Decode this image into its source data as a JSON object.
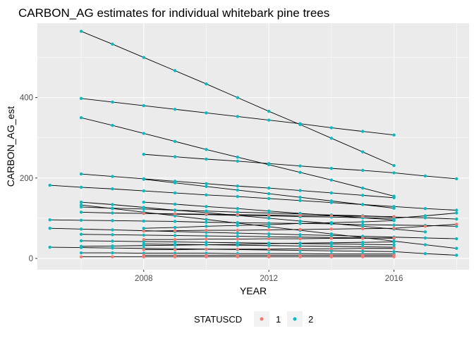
{
  "chart_data": {
    "type": "scatter",
    "title": "CARBON_AG estimates for individual whitebark pine trees",
    "xlabel": "YEAR",
    "ylabel": "CARBON_AG_est",
    "xlim": [
      2004.6,
      2018.4
    ],
    "ylim": [
      -28,
      585
    ],
    "x_ticks": [
      2008,
      2012,
      2016
    ],
    "y_ticks": [
      0,
      200,
      400
    ],
    "x_tick_labels": [
      "2008",
      "2012",
      "2016"
    ],
    "y_tick_labels": [
      "0",
      "200",
      "400"
    ],
    "grid": true,
    "legend": {
      "title": "STATUSCD",
      "position": "bottom",
      "entries": [
        {
          "label": "1",
          "color": "#F8766D"
        },
        {
          "label": "2",
          "color": "#00BFC4"
        }
      ]
    },
    "line_color": "#000000",
    "trees": [
      {
        "status": 2,
        "x": [
          2006,
          2007,
          2008,
          2009,
          2010,
          2011,
          2012,
          2013,
          2014,
          2015,
          2016
        ],
        "y": [
          565,
          533,
          500,
          467,
          434,
          400,
          366,
          333,
          299,
          265,
          231
        ]
      },
      {
        "status": 2,
        "x": [
          2006,
          2007,
          2008,
          2009,
          2010,
          2011,
          2012,
          2013,
          2014,
          2015,
          2016
        ],
        "y": [
          398,
          389,
          380,
          371,
          362,
          353,
          344,
          335,
          325,
          316,
          307
        ]
      },
      {
        "status": 2,
        "x": [
          2006,
          2007,
          2008,
          2009,
          2010,
          2011,
          2012,
          2013,
          2014,
          2015,
          2016
        ],
        "y": [
          350,
          331,
          311,
          291,
          271,
          252,
          233,
          214,
          195,
          175,
          155
        ]
      },
      {
        "status": 2,
        "x": [
          2008,
          2009,
          2010,
          2011,
          2012,
          2013,
          2014,
          2015,
          2016,
          2017,
          2018
        ],
        "y": [
          259,
          253,
          247,
          242,
          236,
          230,
          224,
          219,
          213,
          205,
          198
        ]
      },
      {
        "status": 2,
        "x": [
          2006,
          2007,
          2008,
          2009,
          2010,
          2011,
          2012,
          2013,
          2014,
          2015,
          2016
        ],
        "y": [
          210,
          204,
          198,
          192,
          186,
          180,
          175,
          169,
          163,
          157,
          151
        ]
      },
      {
        "status": 2,
        "x": [
          2005,
          2006,
          2007,
          2008,
          2009,
          2010,
          2011,
          2012,
          2013,
          2014,
          2015,
          2016,
          2017,
          2018
        ],
        "y": [
          182,
          177,
          173,
          168,
          163,
          158,
          154,
          149,
          144,
          139,
          134,
          129,
          124,
          120
        ]
      },
      {
        "status": 2,
        "x": [
          2008,
          2009,
          2010,
          2011,
          2012,
          2013,
          2014,
          2015,
          2016
        ],
        "y": [
          197,
          188,
          179,
          170,
          161,
          152,
          143,
          134,
          125
        ]
      },
      {
        "status": 2,
        "x": [
          2006,
          2007,
          2008,
          2009,
          2010,
          2011,
          2012,
          2013,
          2014,
          2015,
          2016,
          2017
        ],
        "y": [
          140,
          134,
          127,
          120,
          114,
          107,
          100,
          93,
          87,
          80,
          73,
          66
        ]
      },
      {
        "status": 2,
        "x": [
          2006,
          2007,
          2008,
          2009,
          2010,
          2011,
          2012,
          2013,
          2014,
          2015,
          2016,
          2017,
          2018
        ],
        "y": [
          133,
          124,
          115,
          106,
          97,
          88,
          79,
          70,
          61,
          52,
          43,
          34,
          25
        ]
      },
      {
        "status": 2,
        "x": [
          2006,
          2007,
          2008,
          2009,
          2010,
          2011,
          2012,
          2013,
          2014,
          2015,
          2016,
          2017,
          2018
        ],
        "y": [
          128,
          125,
          123,
          120,
          118,
          115,
          113,
          111,
          108,
          106,
          103,
          101,
          98
        ]
      },
      {
        "status": 2,
        "x": [
          2006,
          2007,
          2008,
          2009,
          2010,
          2011,
          2012,
          2013,
          2014,
          2015,
          2016,
          2017,
          2018
        ],
        "y": [
          115,
          113,
          112,
          110,
          109,
          107,
          106,
          104,
          103,
          101,
          100,
          106,
          113
        ]
      },
      {
        "status": 2,
        "x": [
          2008,
          2009,
          2010,
          2011,
          2012,
          2013,
          2014,
          2015,
          2016
        ],
        "y": [
          140,
          135,
          129,
          124,
          118,
          112,
          107,
          101,
          96
        ]
      },
      {
        "status": 2,
        "x": [
          2005,
          2006,
          2007,
          2008,
          2009,
          2010,
          2011,
          2012,
          2013,
          2014,
          2015,
          2016,
          2017,
          2018
        ],
        "y": [
          96,
          95,
          94,
          93,
          92,
          90,
          89,
          88,
          87,
          86,
          84,
          83,
          82,
          80
        ]
      },
      {
        "status": 2,
        "x": [
          2005,
          2006,
          2007,
          2008,
          2009,
          2010,
          2011,
          2012,
          2013,
          2014,
          2015,
          2016,
          2017,
          2018
        ],
        "y": [
          75,
          73,
          71,
          69,
          67,
          65,
          63,
          61,
          59,
          57,
          55,
          53,
          51,
          49
        ]
      },
      {
        "status": 2,
        "x": [
          2008,
          2009,
          2010,
          2011,
          2012,
          2013,
          2014,
          2015,
          2016
        ],
        "y": [
          75,
          77,
          80,
          82,
          84,
          87,
          89,
          91,
          94
        ]
      },
      {
        "status": 2,
        "x": [
          2006,
          2007,
          2008,
          2009,
          2010,
          2011,
          2012,
          2013,
          2014,
          2015,
          2016
        ],
        "y": [
          60,
          59,
          58,
          57,
          56,
          55,
          54,
          53,
          52,
          51,
          50
        ]
      },
      {
        "status": 2,
        "x": [
          2006,
          2007,
          2008,
          2009,
          2010,
          2011,
          2012,
          2013,
          2014,
          2015,
          2016
        ],
        "y": [
          44,
          43,
          42,
          41,
          40,
          39,
          38,
          37,
          36,
          35,
          34
        ]
      },
      {
        "status": 2,
        "x": [
          2005,
          2006,
          2007,
          2008,
          2009,
          2010,
          2011,
          2012,
          2013,
          2014,
          2015,
          2016,
          2017,
          2018
        ],
        "y": [
          28,
          27,
          26,
          25,
          24,
          23,
          22,
          21,
          20,
          19,
          18,
          17,
          12,
          8
        ]
      },
      {
        "status": 2,
        "x": [
          2006,
          2007,
          2008,
          2009,
          2010,
          2011,
          2012,
          2013,
          2014,
          2015,
          2016
        ],
        "y": [
          30,
          31,
          32,
          33,
          34,
          35,
          37,
          38,
          39,
          40,
          41
        ]
      },
      {
        "status": 2,
        "x": [
          2008,
          2009,
          2010,
          2011,
          2012,
          2013,
          2014,
          2015,
          2016
        ],
        "y": [
          36,
          35,
          34,
          33,
          32,
          31,
          30,
          29,
          28
        ]
      },
      {
        "status": 2,
        "x": [
          2006,
          2007,
          2008,
          2009,
          2010,
          2011,
          2012,
          2013,
          2014,
          2015,
          2016
        ],
        "y": [
          14,
          14,
          13,
          13,
          13,
          12,
          12,
          12,
          11,
          11,
          11
        ]
      },
      {
        "status": 1,
        "x": [
          2008,
          2009,
          2010,
          2011,
          2012,
          2013,
          2014,
          2015,
          2016,
          2017,
          2018
        ],
        "y": [
          68,
          69,
          70,
          70,
          71,
          72,
          73,
          74,
          75,
          80,
          85
        ]
      },
      {
        "status": 1,
        "x": [
          2008,
          2009,
          2010,
          2011,
          2012,
          2013,
          2014,
          2015,
          2016
        ],
        "y": [
          112,
          111,
          110,
          109,
          108,
          107,
          106,
          105,
          104
        ]
      },
      {
        "status": 1,
        "x": [
          2008,
          2009,
          2010,
          2011,
          2012,
          2013,
          2014,
          2015,
          2016
        ],
        "y": [
          47,
          47,
          48,
          48,
          49,
          49,
          50,
          50,
          51
        ]
      },
      {
        "status": 1,
        "x": [
          2006,
          2007,
          2008,
          2009,
          2010,
          2011,
          2012,
          2013,
          2014,
          2015,
          2016
        ],
        "y": [
          4,
          4,
          4,
          4,
          4,
          4,
          4,
          4,
          4,
          4,
          4
        ]
      },
      {
        "status": 1,
        "x": [
          2008,
          2009,
          2010,
          2011,
          2012,
          2013,
          2014,
          2015,
          2016
        ],
        "y": [
          22,
          22,
          23,
          23,
          23,
          24,
          24,
          25,
          25
        ]
      },
      {
        "status": 1,
        "x": [
          2008,
          2009,
          2010,
          2011,
          2012,
          2013,
          2014,
          2015,
          2016
        ],
        "y": [
          8,
          8,
          8,
          8,
          8,
          8,
          8,
          8,
          8
        ]
      }
    ]
  }
}
